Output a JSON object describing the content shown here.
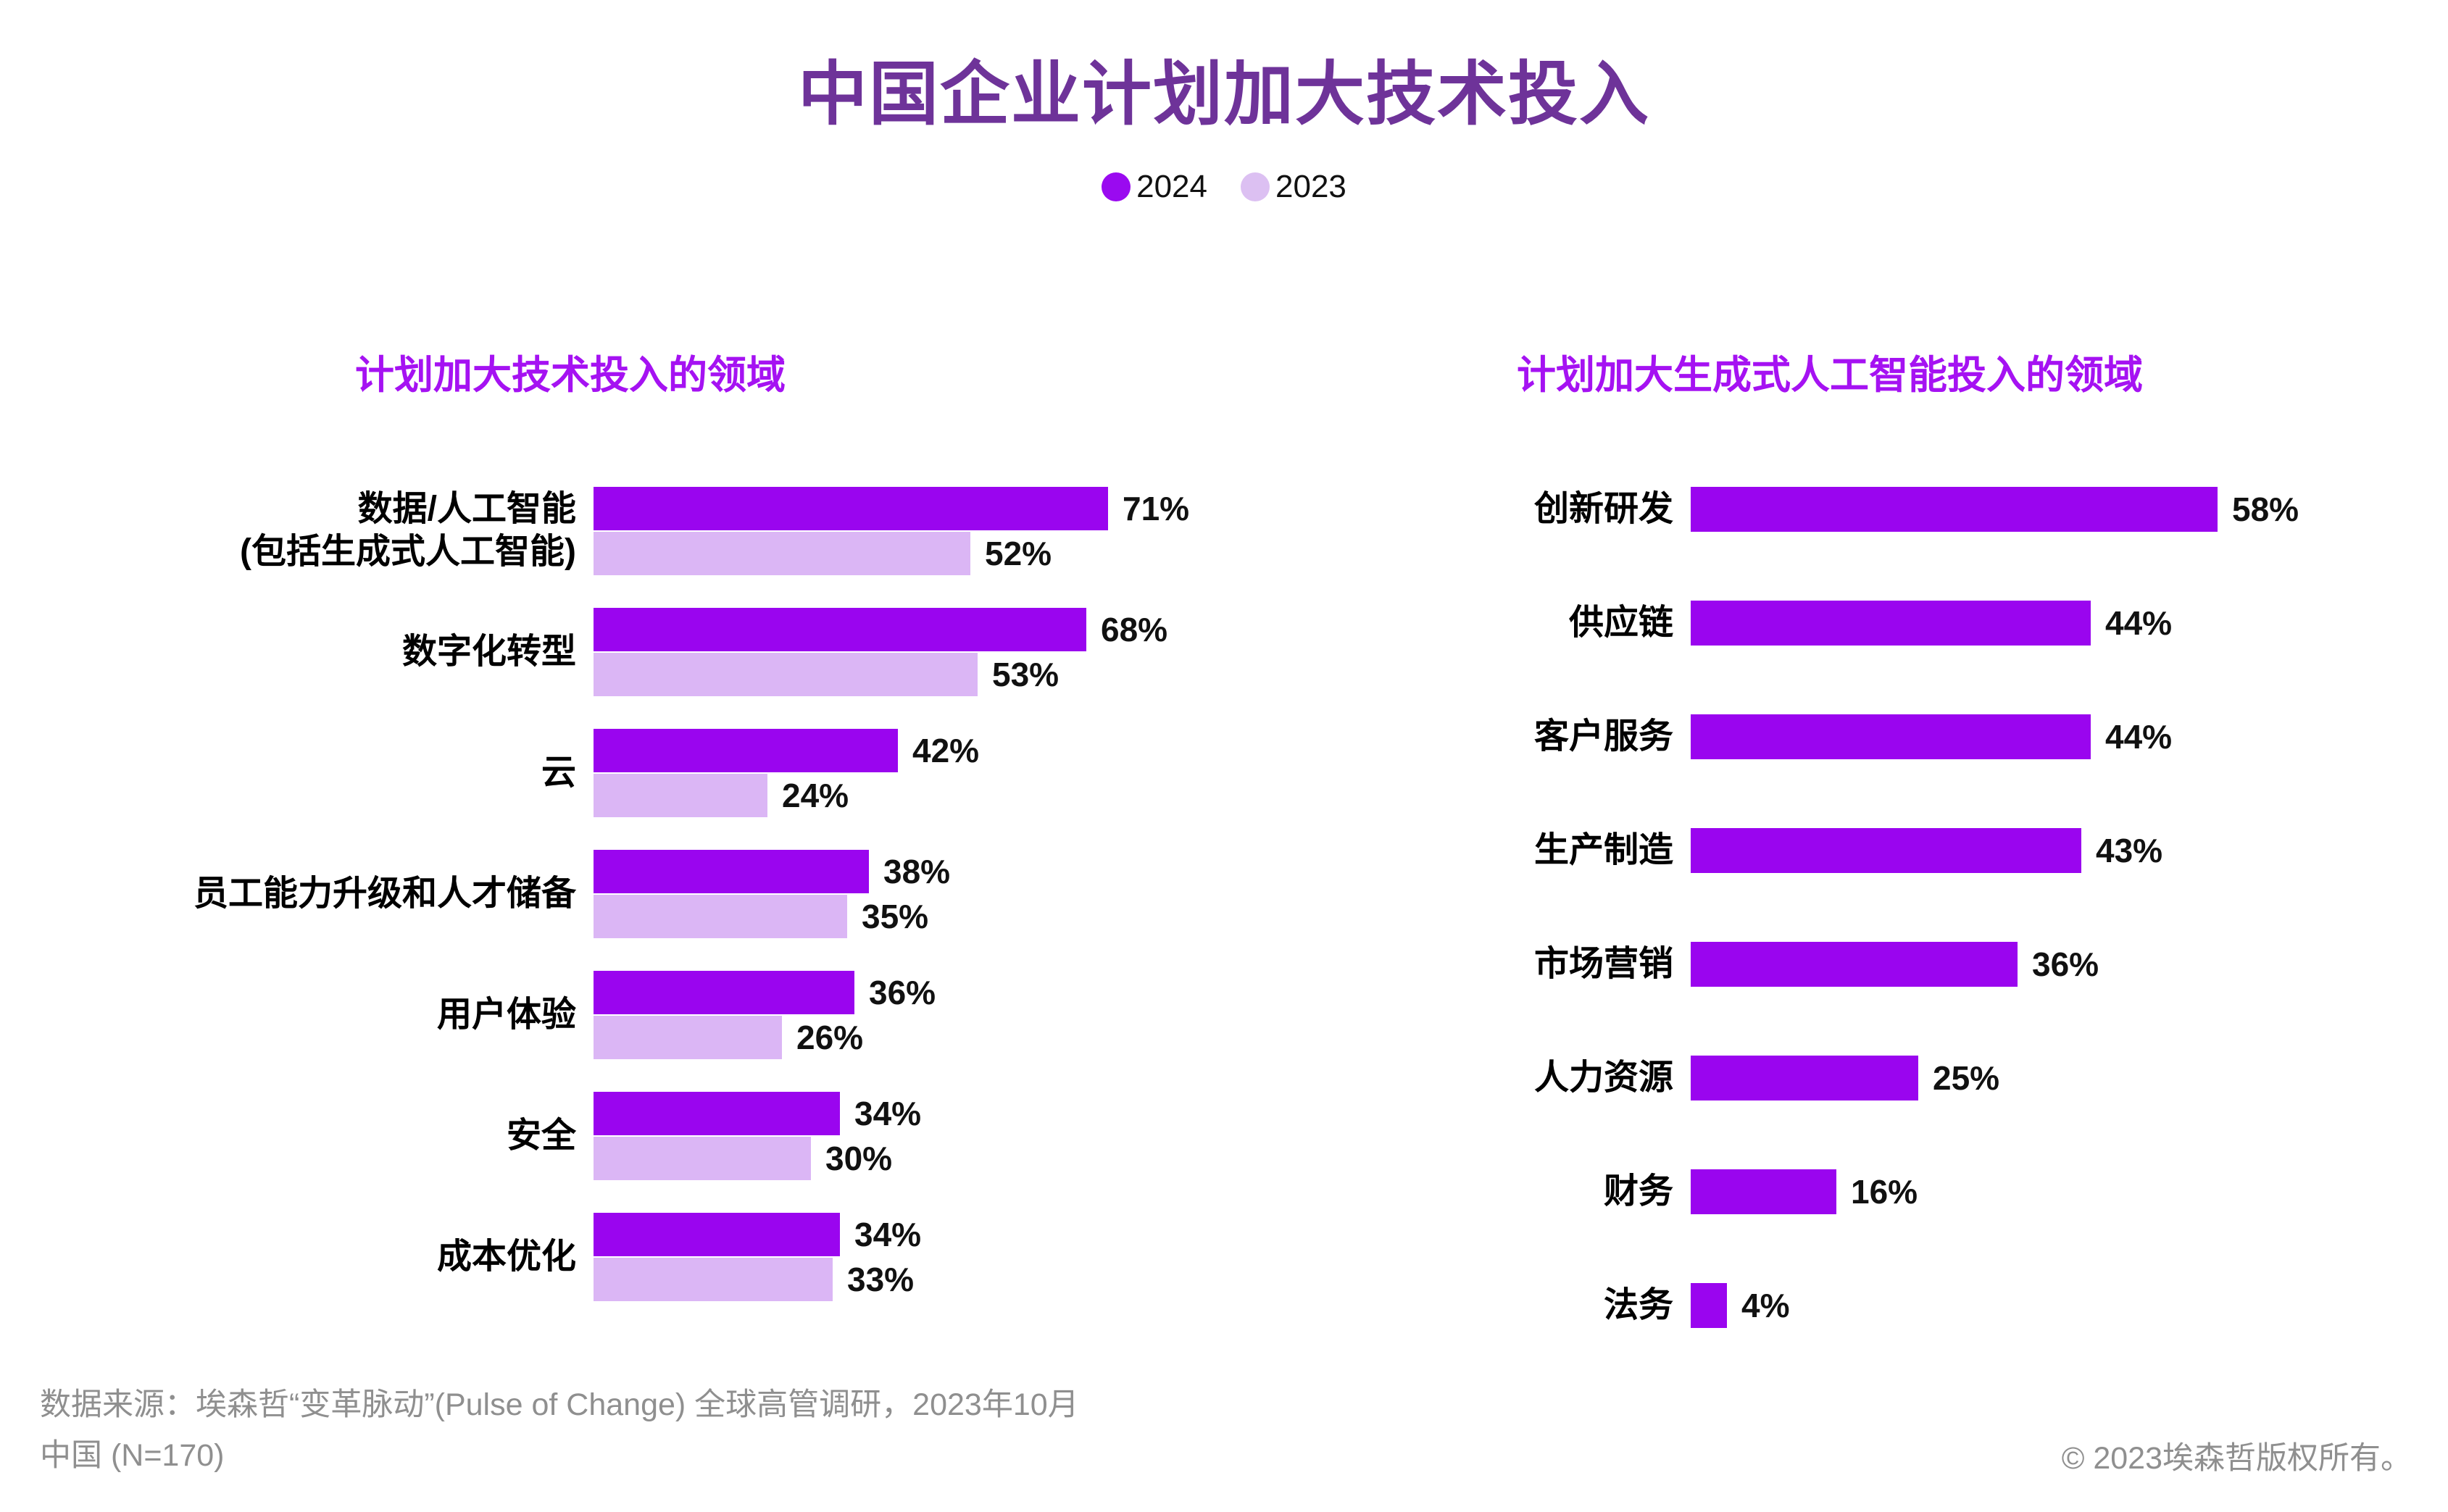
{
  "title": "中国企业计划加大技术投入",
  "legend": [
    {
      "label": "2024",
      "color": "#9A0AF0"
    },
    {
      "label": "2023",
      "color": "#DCC0F2"
    }
  ],
  "colors": {
    "background": "#FFFFFF",
    "title": "#6E3399",
    "subtitle": "#A512F2",
    "bar_2024": "#9A05EF",
    "bar_2023": "#DBB6F5",
    "value_text": "#111111",
    "footer_text": "#8F8F8F"
  },
  "chart_data": [
    {
      "type": "bar",
      "orientation": "horizontal",
      "title": "计划加大技术投入的领域",
      "categories": [
        "数据/人工智能\n(包括生成式人工智能)",
        "数字化转型",
        "云",
        "员工能力升级和人才储备",
        "用户体验",
        "安全",
        "成本优化"
      ],
      "series": [
        {
          "name": "2024",
          "values": [
            71,
            68,
            42,
            38,
            36,
            34,
            34
          ],
          "color": "#9A05EF"
        },
        {
          "name": "2023",
          "values": [
            52,
            53,
            24,
            35,
            26,
            30,
            33
          ],
          "color": "#DBB6F5"
        }
      ],
      "value_suffix": "%",
      "xlim": [
        0,
        80
      ],
      "grid": false,
      "legend_position": "top-center"
    },
    {
      "type": "bar",
      "orientation": "horizontal",
      "title": "计划加大生成式人工智能投入的领域",
      "categories": [
        "创新研发",
        "供应链",
        "客户服务",
        "生产制造",
        "市场营销",
        "人力资源",
        "财务",
        "法务"
      ],
      "series": [
        {
          "name": "2024",
          "values": [
            58,
            44,
            44,
            43,
            36,
            25,
            16,
            4
          ],
          "color": "#9A05EF"
        }
      ],
      "value_suffix": "%",
      "xlim": [
        0,
        65
      ],
      "grid": false
    }
  ],
  "footer": {
    "source_line1": "数据来源：埃森哲“变革脉动”(Pulse of Change) 全球高管调研，2023年10月",
    "source_line2": "中国 (N=170)",
    "copyright": "© 2023埃森哲版权所有。"
  }
}
